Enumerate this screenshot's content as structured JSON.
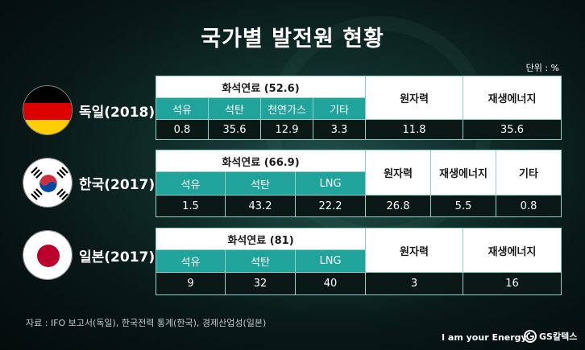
{
  "title": "국가별 발전원 현황",
  "unit": "단위 : %",
  "source": "자료 : IFO 보고서(독일), 한국전력 통계(한국), 경제산업성(일본)",
  "slogan": "I am your Energy",
  "brand": "GS칼텍스",
  "colors": {
    "header_bg": "#ffffff",
    "sub_header_bg": "#1fa39a",
    "value_bg": "#0a1816",
    "border": "#8fcfc6"
  },
  "chart_data": {
    "type": "table",
    "title": "국가별 발전원 현황",
    "unit": "%",
    "countries": [
      {
        "name": "독일(2018)",
        "flag": "germany-flag",
        "fossil_label": "화석연료 (52.6)",
        "fossil_total": 52.6,
        "fossil": [
          {
            "label": "석유",
            "value": "0.8"
          },
          {
            "label": "석탄",
            "value": "35.6"
          },
          {
            "label": "천연가스",
            "value": "12.9"
          },
          {
            "label": "기타",
            "value": "3.3"
          }
        ],
        "others": [
          {
            "label": "원자력",
            "value": "11.8"
          },
          {
            "label": "재생에너지",
            "value": "35.6"
          }
        ]
      },
      {
        "name": "한국(2017)",
        "flag": "korea-flag",
        "fossil_label": "화석연료 (66.9)",
        "fossil_total": 66.9,
        "fossil": [
          {
            "label": "석유",
            "value": "1.5"
          },
          {
            "label": "석탄",
            "value": "43.2"
          },
          {
            "label": "LNG",
            "value": "22.2"
          }
        ],
        "others": [
          {
            "label": "원자력",
            "value": "26.8"
          },
          {
            "label": "재생에너지",
            "value": "5.5"
          },
          {
            "label": "기타",
            "value": "0.8"
          }
        ]
      },
      {
        "name": "일본(2017)",
        "flag": "japan-flag",
        "fossil_label": "화석연료 (81)",
        "fossil_total": 81,
        "fossil": [
          {
            "label": "석유",
            "value": "9"
          },
          {
            "label": "석탄",
            "value": "32"
          },
          {
            "label": "LNG",
            "value": "40"
          }
        ],
        "others": [
          {
            "label": "원자력",
            "value": "3"
          },
          {
            "label": "재생에너지",
            "value": "16"
          }
        ]
      }
    ]
  }
}
